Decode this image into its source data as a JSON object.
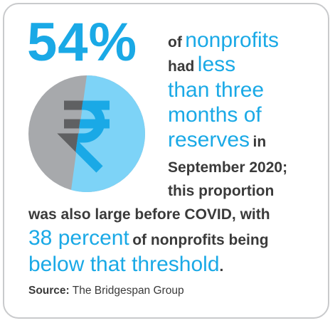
{
  "headline_stat": "54%",
  "lines": {
    "l1_a": "of",
    "l1_b": "nonprofits",
    "l2_a": "had",
    "l2_b": "less",
    "l3": "than three",
    "l4": "months of",
    "l5_a": "reserves",
    "l5_b": "in",
    "l6": "September 2020;",
    "l7": "this proportion",
    "l8": "was also large before COVID, with",
    "l9_a": "38 percent",
    "l9_b": "of nonprofits being",
    "l10_a": "below that threshold",
    "l10_b": "."
  },
  "source": {
    "label": "Source:",
    "text": "The Bridgespan Group"
  },
  "graphic": {
    "icon": "rupee-icon",
    "share": 0.54,
    "colors": {
      "filled": "#7dd3f7",
      "rest": "#a7a9ac",
      "symbol": "#5f6062",
      "accent": "#1aa9e6"
    }
  }
}
